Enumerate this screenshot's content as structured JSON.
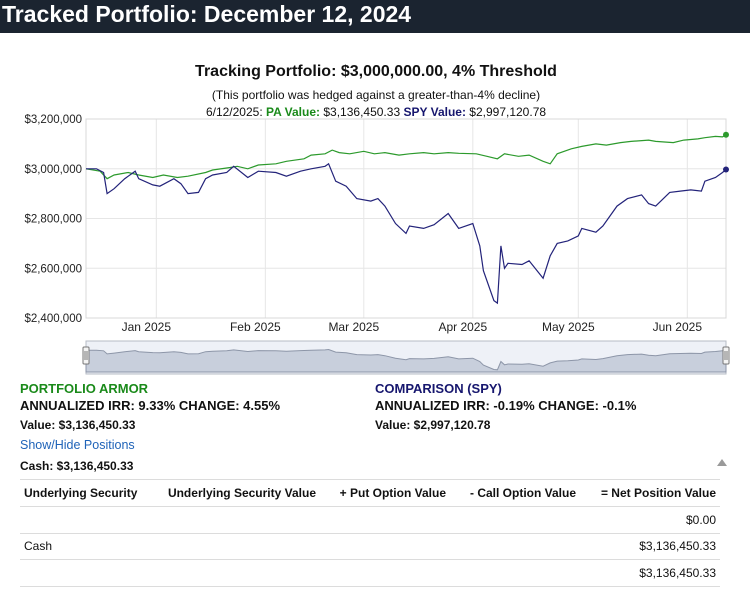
{
  "header": {
    "title": "Tracked Portfolio: December 12, 2024"
  },
  "chart_data": {
    "type": "line",
    "title": "Tracking Portfolio: $3,000,000.00, 4% Threshold",
    "subtitle": "(This portfolio was hedged against a greater-than-4% decline)",
    "tooltip": {
      "date": "6/12/2025:",
      "pa_label": "PA Value:",
      "pa_value": "$3,136,450.33",
      "spy_label": "SPY Value:",
      "spy_value": "$2,997,120.78"
    },
    "y_ticks": [
      {
        "value": 3200000,
        "label": "$3,200,000"
      },
      {
        "value": 3000000,
        "label": "$3,000,000"
      },
      {
        "value": 2800000,
        "label": "$2,800,000"
      },
      {
        "value": 2600000,
        "label": "$2,600,000"
      },
      {
        "value": 2400000,
        "label": "$2,400,000"
      }
    ],
    "ylim": [
      2400000,
      3200000
    ],
    "x_range": [
      "2024-12-12",
      "2025-06-12"
    ],
    "x_ticks": [
      {
        "date": "2025-01-01",
        "label": "Jan 2025"
      },
      {
        "date": "2025-02-01",
        "label": "Feb 2025"
      },
      {
        "date": "2025-03-01",
        "label": "Mar 2025"
      },
      {
        "date": "2025-04-01",
        "label": "Apr 2025"
      },
      {
        "date": "2025-05-01",
        "label": "May 2025"
      },
      {
        "date": "2025-06-01",
        "label": "Jun 2025"
      }
    ],
    "series": [
      {
        "name": "PA Value",
        "color": "#2c9a2c",
        "points": [
          [
            "2024-12-12",
            3000000
          ],
          [
            "2024-12-16",
            2990000
          ],
          [
            "2024-12-18",
            2960000
          ],
          [
            "2024-12-20",
            2975000
          ],
          [
            "2024-12-24",
            2985000
          ],
          [
            "2024-12-27",
            2975000
          ],
          [
            "2024-12-31",
            2965000
          ],
          [
            "2025-01-03",
            2975000
          ],
          [
            "2025-01-07",
            2965000
          ],
          [
            "2025-01-10",
            2970000
          ],
          [
            "2025-01-15",
            2985000
          ],
          [
            "2025-01-17",
            2995000
          ],
          [
            "2025-01-22",
            3005000
          ],
          [
            "2025-01-24",
            3010000
          ],
          [
            "2025-01-27",
            3000000
          ],
          [
            "2025-01-30",
            3015000
          ],
          [
            "2025-02-04",
            3020000
          ],
          [
            "2025-02-07",
            3030000
          ],
          [
            "2025-02-12",
            3040000
          ],
          [
            "2025-02-14",
            3055000
          ],
          [
            "2025-02-18",
            3060000
          ],
          [
            "2025-02-20",
            3075000
          ],
          [
            "2025-02-22",
            3065000
          ],
          [
            "2025-02-25",
            3060000
          ],
          [
            "2025-03-01",
            3070000
          ],
          [
            "2025-03-04",
            3060000
          ],
          [
            "2025-03-07",
            3065000
          ],
          [
            "2025-03-11",
            3055000
          ],
          [
            "2025-03-14",
            3060000
          ],
          [
            "2025-03-18",
            3065000
          ],
          [
            "2025-03-21",
            3060000
          ],
          [
            "2025-03-25",
            3065000
          ],
          [
            "2025-03-28",
            3062000
          ],
          [
            "2025-04-02",
            3060000
          ],
          [
            "2025-04-05",
            3050000
          ],
          [
            "2025-04-08",
            3040000
          ],
          [
            "2025-04-10",
            3060000
          ],
          [
            "2025-04-14",
            3050000
          ],
          [
            "2025-04-17",
            3055000
          ],
          [
            "2025-04-21",
            3030000
          ],
          [
            "2025-04-23",
            3020000
          ],
          [
            "2025-04-25",
            3060000
          ],
          [
            "2025-04-29",
            3080000
          ],
          [
            "2025-05-02",
            3090000
          ],
          [
            "2025-05-06",
            3100000
          ],
          [
            "2025-05-09",
            3095000
          ],
          [
            "2025-05-13",
            3105000
          ],
          [
            "2025-05-16",
            3110000
          ],
          [
            "2025-05-21",
            3115000
          ],
          [
            "2025-05-23",
            3110000
          ],
          [
            "2025-05-28",
            3105000
          ],
          [
            "2025-05-31",
            3115000
          ],
          [
            "2025-06-04",
            3120000
          ],
          [
            "2025-06-06",
            3125000
          ],
          [
            "2025-06-09",
            3130000
          ],
          [
            "2025-06-11",
            3128000
          ],
          [
            "2025-06-12",
            3136450
          ]
        ]
      },
      {
        "name": "SPY Value",
        "color": "#23237a",
        "points": [
          [
            "2024-12-12",
            3000000
          ],
          [
            "2024-12-15",
            3000000
          ],
          [
            "2024-12-17",
            2985000
          ],
          [
            "2024-12-18",
            2900000
          ],
          [
            "2024-12-20",
            2920000
          ],
          [
            "2024-12-23",
            2960000
          ],
          [
            "2024-12-26",
            2990000
          ],
          [
            "2024-12-27",
            2960000
          ],
          [
            "2024-12-31",
            2935000
          ],
          [
            "2025-01-02",
            2930000
          ],
          [
            "2025-01-06",
            2960000
          ],
          [
            "2025-01-08",
            2940000
          ],
          [
            "2025-01-10",
            2900000
          ],
          [
            "2025-01-13",
            2905000
          ],
          [
            "2025-01-15",
            2960000
          ],
          [
            "2025-01-17",
            2975000
          ],
          [
            "2025-01-21",
            2985000
          ],
          [
            "2025-01-23",
            3010000
          ],
          [
            "2025-01-27",
            2965000
          ],
          [
            "2025-01-30",
            2990000
          ],
          [
            "2025-02-04",
            2985000
          ],
          [
            "2025-02-07",
            2970000
          ],
          [
            "2025-02-11",
            2990000
          ],
          [
            "2025-02-14",
            3000000
          ],
          [
            "2025-02-18",
            3010000
          ],
          [
            "2025-02-19",
            3020000
          ],
          [
            "2025-02-21",
            2950000
          ],
          [
            "2025-02-24",
            2930000
          ],
          [
            "2025-02-27",
            2880000
          ],
          [
            "2025-03-03",
            2870000
          ],
          [
            "2025-03-05",
            2880000
          ],
          [
            "2025-03-07",
            2850000
          ],
          [
            "2025-03-10",
            2780000
          ],
          [
            "2025-03-13",
            2740000
          ],
          [
            "2025-03-14",
            2770000
          ],
          [
            "2025-03-18",
            2760000
          ],
          [
            "2025-03-21",
            2775000
          ],
          [
            "2025-03-25",
            2820000
          ],
          [
            "2025-03-28",
            2760000
          ],
          [
            "2025-04-01",
            2780000
          ],
          [
            "2025-04-03",
            2690000
          ],
          [
            "2025-04-04",
            2590000
          ],
          [
            "2025-04-07",
            2470000
          ],
          [
            "2025-04-08",
            2460000
          ],
          [
            "2025-04-09",
            2690000
          ],
          [
            "2025-04-10",
            2600000
          ],
          [
            "2025-04-11",
            2620000
          ],
          [
            "2025-04-15",
            2615000
          ],
          [
            "2025-04-17",
            2630000
          ],
          [
            "2025-04-21",
            2560000
          ],
          [
            "2025-04-23",
            2650000
          ],
          [
            "2025-04-25",
            2700000
          ],
          [
            "2025-04-28",
            2710000
          ],
          [
            "2025-05-01",
            2730000
          ],
          [
            "2025-05-02",
            2760000
          ],
          [
            "2025-05-06",
            2745000
          ],
          [
            "2025-05-08",
            2770000
          ],
          [
            "2025-05-12",
            2850000
          ],
          [
            "2025-05-15",
            2880000
          ],
          [
            "2025-05-19",
            2895000
          ],
          [
            "2025-05-21",
            2860000
          ],
          [
            "2025-05-23",
            2850000
          ],
          [
            "2025-05-27",
            2905000
          ],
          [
            "2025-05-30",
            2910000
          ],
          [
            "2025-06-02",
            2915000
          ],
          [
            "2025-06-05",
            2910000
          ],
          [
            "2025-06-06",
            2950000
          ],
          [
            "2025-06-09",
            2965000
          ],
          [
            "2025-06-11",
            2985000
          ],
          [
            "2025-06-12",
            2997120
          ]
        ]
      }
    ]
  },
  "summary": {
    "pa": {
      "title": "PORTFOLIO ARMOR",
      "stats": "ANNUALIZED IRR: 9.33% CHANGE: 4.55%",
      "value": "Value: $3,136,450.33"
    },
    "spy": {
      "title": "COMPARISON (SPY)",
      "stats": "ANNUALIZED IRR: -0.19% CHANGE: -0.1%",
      "value": "Value: $2,997,120.78"
    }
  },
  "positions": {
    "toggle_label": "Show/Hide Positions",
    "cash_label": "Cash: $3,136,450.33",
    "columns": [
      "Underlying Security",
      "Underlying Security Value",
      "+ Put Option Value",
      "- Call Option Value",
      "= Net Position Value"
    ],
    "rows": [
      [
        "",
        "",
        "",
        "",
        "$0.00"
      ],
      [
        "Cash",
        "",
        "",
        "",
        "$3,136,450.33"
      ],
      [
        "",
        "",
        "",
        "",
        "$3,136,450.33"
      ]
    ]
  }
}
